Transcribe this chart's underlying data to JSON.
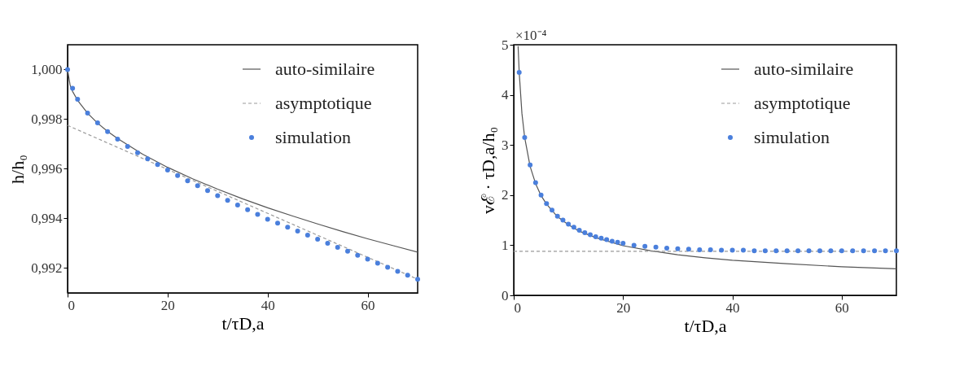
{
  "chart_data": [
    {
      "type": "line",
      "xlabel": "t/τD,a",
      "ylabel": "h/h₀",
      "xlim": [
        0,
        70
      ],
      "ylim": [
        0.991,
        1.001
      ],
      "xticks": [
        0,
        20,
        40,
        60
      ],
      "yticks": [
        {
          "value": 0.992,
          "label": "0,992"
        },
        {
          "value": 0.994,
          "label": "0,994"
        },
        {
          "value": 0.996,
          "label": "0,996"
        },
        {
          "value": 0.998,
          "label": "0,998"
        },
        {
          "value": 1.0,
          "label": "1,000"
        }
      ],
      "grid": false,
      "legend": "top right",
      "series": [
        {
          "name": "auto-similaire",
          "type": "line",
          "line_style": "solid",
          "color": "#555555",
          "x": [
            0,
            0.5,
            1,
            2,
            4,
            6,
            8,
            10,
            15,
            20,
            25,
            30,
            35,
            40,
            45,
            50,
            55,
            60,
            65,
            70
          ],
          "values": [
            1.0,
            0.99938,
            0.99912,
            0.99876,
            0.99824,
            0.99784,
            0.99751,
            0.99722,
            0.99659,
            0.99606,
            0.9956,
            0.99518,
            0.99479,
            0.99443,
            0.9941,
            0.99378,
            0.99347,
            0.99318,
            0.99291,
            0.99264
          ]
        },
        {
          "name": "asymptotique",
          "type": "line",
          "line_style": "dashed",
          "color": "#999999",
          "x": [
            0,
            70
          ],
          "values": [
            0.99775,
            0.99155
          ]
        },
        {
          "name": "simulation",
          "type": "scatter",
          "marker": "circle",
          "color": "#4a7fdc",
          "x": [
            0,
            1,
            2,
            4,
            6,
            8,
            10,
            12,
            14,
            16,
            18,
            20,
            22,
            24,
            26,
            28,
            30,
            32,
            34,
            36,
            38,
            40,
            42,
            44,
            46,
            48,
            50,
            52,
            54,
            56,
            58,
            60,
            62,
            64,
            66,
            68,
            70
          ],
          "values": [
            1.0,
            0.99925,
            0.9988,
            0.99825,
            0.99785,
            0.9975,
            0.9972,
            0.9969,
            0.99665,
            0.9964,
            0.99617,
            0.99595,
            0.99573,
            0.99552,
            0.99532,
            0.99512,
            0.99492,
            0.99473,
            0.99454,
            0.99435,
            0.99416,
            0.99397,
            0.99381,
            0.99365,
            0.99349,
            0.99333,
            0.99316,
            0.993,
            0.99284,
            0.99268,
            0.99252,
            0.99236,
            0.9922,
            0.99203,
            0.99187,
            0.99171,
            0.99155
          ]
        }
      ]
    },
    {
      "type": "line",
      "xlabel": "t/τD,a",
      "ylabel": "vℰ · τD,a/h₀",
      "annotations": [
        "×10⁻⁴"
      ],
      "xlim": [
        0,
        70
      ],
      "ylim": [
        0,
        5
      ],
      "xticks": [
        0,
        20,
        40,
        60
      ],
      "yticks": [
        0,
        1,
        2,
        3,
        4,
        5
      ],
      "grid": false,
      "legend": "top right",
      "series": [
        {
          "name": "auto-similaire",
          "type": "line",
          "line_style": "solid",
          "color": "#555555",
          "x": [
            0.8,
            1,
            1.5,
            2,
            3,
            4,
            5,
            6,
            8,
            10,
            12,
            15,
            20,
            25,
            30,
            35,
            40,
            50,
            60,
            70
          ],
          "values": [
            4.97,
            4.45,
            3.63,
            3.15,
            2.57,
            2.23,
            1.99,
            1.82,
            1.57,
            1.41,
            1.28,
            1.15,
            0.99,
            0.89,
            0.81,
            0.75,
            0.7,
            0.63,
            0.57,
            0.53
          ]
        },
        {
          "name": "asymptotique",
          "type": "line",
          "line_style": "dashed",
          "color": "#999999",
          "x": [
            0,
            70
          ],
          "values": [
            0.88,
            0.88
          ]
        },
        {
          "name": "simulation",
          "type": "scatter",
          "marker": "circle",
          "color": "#4a7fdc",
          "x": [
            1,
            2,
            3,
            4,
            5,
            6,
            7,
            8,
            9,
            10,
            11,
            12,
            13,
            14,
            15,
            16,
            17,
            18,
            19,
            20,
            22,
            24,
            26,
            28,
            30,
            32,
            34,
            36,
            38,
            40,
            42,
            44,
            46,
            48,
            50,
            52,
            54,
            56,
            58,
            60,
            62,
            64,
            66,
            68,
            70
          ],
          "values": [
            4.45,
            3.15,
            2.6,
            2.25,
            2.0,
            1.83,
            1.7,
            1.58,
            1.5,
            1.42,
            1.36,
            1.3,
            1.25,
            1.21,
            1.17,
            1.14,
            1.11,
            1.08,
            1.06,
            1.04,
            1.0,
            0.98,
            0.96,
            0.94,
            0.93,
            0.92,
            0.91,
            0.91,
            0.9,
            0.9,
            0.9,
            0.89,
            0.89,
            0.89,
            0.89,
            0.89,
            0.89,
            0.89,
            0.89,
            0.89,
            0.89,
            0.89,
            0.89,
            0.89,
            0.89
          ]
        }
      ]
    }
  ]
}
